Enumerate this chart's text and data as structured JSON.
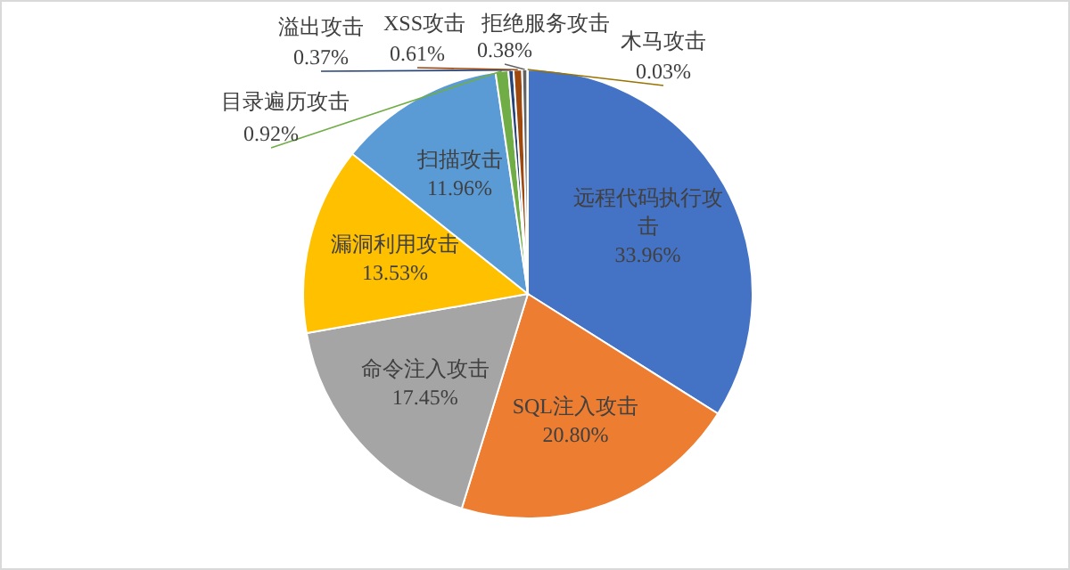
{
  "chart_data": {
    "type": "pie",
    "categories": [
      "远程代码执行攻击",
      "SQL注入攻击",
      "命令注入攻击",
      "漏洞利用攻击",
      "扫描攻击",
      "目录遍历攻击",
      "溢出攻击",
      "XSS攻击",
      "拒绝服务攻击",
      "木马攻击"
    ],
    "values": [
      33.96,
      20.8,
      17.45,
      13.53,
      11.96,
      0.92,
      0.37,
      0.61,
      0.38,
      0.03
    ],
    "value_labels": [
      "33.96%",
      "20.80%",
      "17.45%",
      "13.53%",
      "11.96%",
      "0.92%",
      "0.37%",
      "0.61%",
      "0.38%",
      "0.03%"
    ],
    "colors": [
      "#4472c4",
      "#ed7d31",
      "#a5a5a5",
      "#ffc000",
      "#5b9bd5",
      "#70ad47",
      "#264478",
      "#9e480e",
      "#636363",
      "#997300"
    ]
  }
}
